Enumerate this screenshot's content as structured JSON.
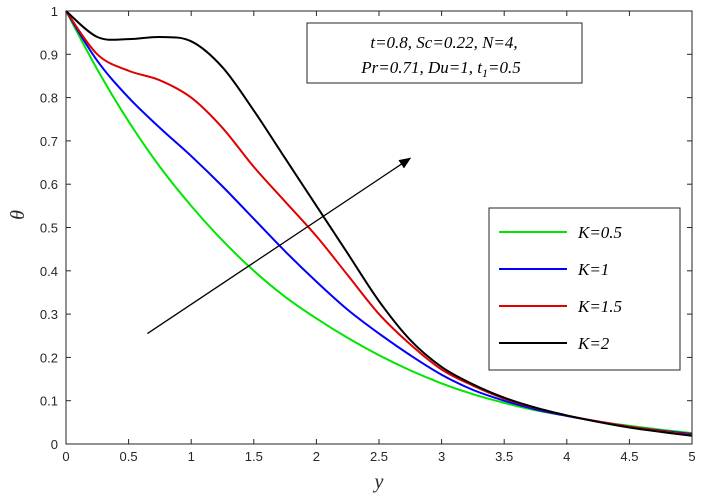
{
  "chart_data": {
    "type": "line",
    "xlabel": "y",
    "ylabel": "θ",
    "xlim": [
      0,
      5
    ],
    "ylim": [
      0,
      1
    ],
    "x_ticks": [
      "0",
      "0.5",
      "1",
      "1.5",
      "2",
      "2.5",
      "3",
      "3.5",
      "4",
      "4.5",
      "5"
    ],
    "y_ticks": [
      "0",
      "0.1",
      "0.2",
      "0.3",
      "0.4",
      "0.5",
      "0.6",
      "0.7",
      "0.8",
      "0.9",
      "1"
    ],
    "grid": false,
    "legend_position": "right",
    "annotation": {
      "line1": "t=0.8, Sc=0.22, N=4,",
      "line2_main": "Pr=0.71, Du=1, t",
      "line2_sub": "1",
      "line2_tail": "=0.5"
    },
    "arrow": {
      "from": [
        0.65,
        0.255
      ],
      "to": [
        2.75,
        0.66
      ]
    },
    "series": [
      {
        "name": "K=0.5",
        "color": "#00e600",
        "x": [
          0,
          0.25,
          0.5,
          0.75,
          1,
          1.25,
          1.5,
          1.75,
          2,
          2.25,
          2.5,
          2.75,
          3,
          3.25,
          3.5,
          3.75,
          4,
          4.25,
          4.5,
          4.75,
          5
        ],
        "y": [
          1.0,
          0.865,
          0.745,
          0.64,
          0.55,
          0.47,
          0.4,
          0.34,
          0.29,
          0.245,
          0.205,
          0.17,
          0.14,
          0.115,
          0.095,
          0.078,
          0.065,
          0.052,
          0.042,
          0.033,
          0.025
        ]
      },
      {
        "name": "K=1",
        "color": "#0000ff",
        "x": [
          0,
          0.25,
          0.5,
          0.75,
          1,
          1.25,
          1.5,
          1.75,
          2,
          2.25,
          2.5,
          2.75,
          3,
          3.25,
          3.5,
          3.75,
          4,
          4.25,
          4.5,
          4.75,
          5
        ],
        "y": [
          1.0,
          0.885,
          0.8,
          0.73,
          0.665,
          0.595,
          0.52,
          0.445,
          0.375,
          0.31,
          0.255,
          0.205,
          0.16,
          0.125,
          0.1,
          0.08,
          0.065,
          0.052,
          0.04,
          0.031,
          0.023
        ]
      },
      {
        "name": "K=1.5",
        "color": "#e00000",
        "x": [
          0,
          0.25,
          0.5,
          0.75,
          1,
          1.25,
          1.5,
          1.75,
          2,
          2.25,
          2.5,
          2.75,
          3,
          3.25,
          3.5,
          3.75,
          4,
          4.25,
          4.5,
          4.75,
          5
        ],
        "y": [
          1.0,
          0.9,
          0.862,
          0.84,
          0.8,
          0.73,
          0.64,
          0.56,
          0.48,
          0.39,
          0.3,
          0.23,
          0.172,
          0.135,
          0.105,
          0.083,
          0.066,
          0.052,
          0.04,
          0.03,
          0.021
        ]
      },
      {
        "name": "K=2",
        "color": "#000000",
        "x": [
          0,
          0.25,
          0.5,
          0.75,
          1,
          1.25,
          1.5,
          1.75,
          2,
          2.25,
          2.5,
          2.75,
          3,
          3.25,
          3.5,
          3.75,
          4,
          4.25,
          4.5,
          4.75,
          5
        ],
        "y": [
          1.0,
          0.94,
          0.935,
          0.94,
          0.93,
          0.87,
          0.77,
          0.66,
          0.55,
          0.44,
          0.33,
          0.24,
          0.178,
          0.138,
          0.107,
          0.084,
          0.066,
          0.051,
          0.038,
          0.028,
          0.019
        ]
      }
    ]
  }
}
